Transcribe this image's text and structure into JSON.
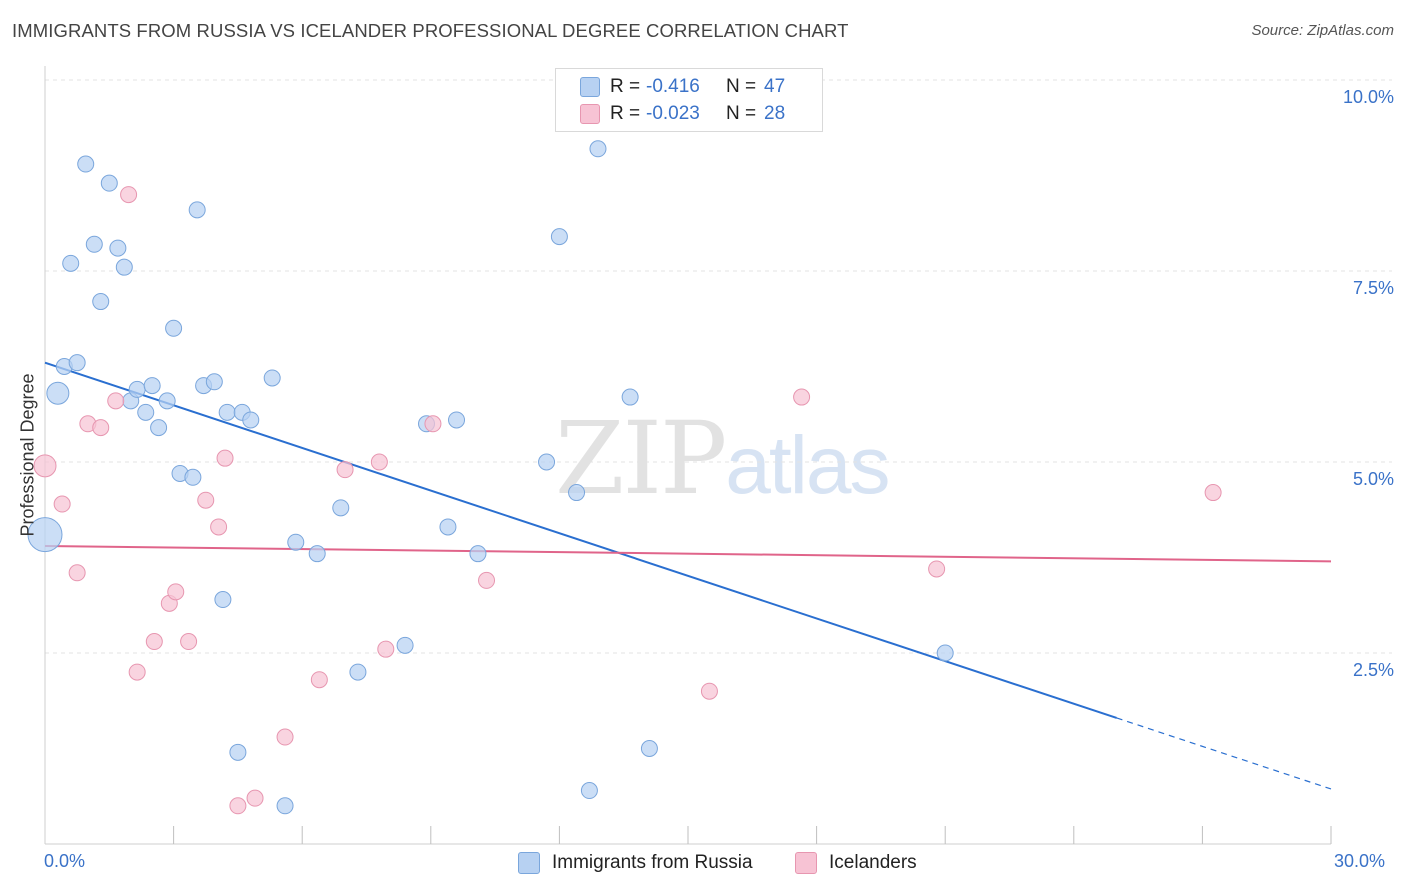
{
  "header": {
    "title": "IMMIGRANTS FROM RUSSIA VS ICELANDER PROFESSIONAL DEGREE CORRELATION CHART",
    "source": "Source: ZipAtlas.com"
  },
  "watermark": {
    "zip": "ZIP",
    "atlas": "atlas"
  },
  "legend": {
    "russia": {
      "r_label": "R =",
      "r_value": "-0.416",
      "n_label": "N =",
      "n_value": "47"
    },
    "iceland": {
      "r_label": "R =",
      "r_value": "-0.023",
      "n_label": "N =",
      "n_value": "28"
    }
  },
  "bottom_legend": {
    "russia": "Immigrants from Russia",
    "iceland": "Icelanders"
  },
  "colors": {
    "russia_fill": "#b7d1f2",
    "russia_stroke": "#7aa6dc",
    "russia_line": "#2a6fd0",
    "iceland_fill": "#f7c3d4",
    "iceland_stroke": "#e796b0",
    "iceland_line": "#e0648a",
    "grid": "#e3e3e3",
    "axis_text": "#3a72c8"
  },
  "chart_data": {
    "type": "scatter",
    "title": "IMMIGRANTS FROM RUSSIA VS ICELANDER PROFESSIONAL DEGREE CORRELATION CHART",
    "xlabel": "",
    "ylabel": "Professional Degree",
    "xlim": [
      0,
      30
    ],
    "ylim": [
      0,
      10.5
    ],
    "x_tick_labels": [
      "0.0%",
      "30.0%"
    ],
    "y_ticks": [
      {
        "value": 2.5,
        "label": "2.5%"
      },
      {
        "value": 5.0,
        "label": "5.0%"
      },
      {
        "value": 7.5,
        "label": "7.5%"
      },
      {
        "value": 10.0,
        "label": "10.0%"
      }
    ],
    "series": [
      {
        "name": "Immigrants from Russia",
        "r": -0.416,
        "n": 47,
        "trend": {
          "x0": 0,
          "y0": 6.3,
          "x1": 25.0,
          "y1": 1.65,
          "dash_to_x": 30,
          "dash_to_y": 0.72
        },
        "points": [
          {
            "x": 0.0,
            "y": 4.05,
            "s": 3
          },
          {
            "x": 0.3,
            "y": 5.9,
            "s": 2
          },
          {
            "x": 0.45,
            "y": 6.25,
            "s": 1
          },
          {
            "x": 0.6,
            "y": 7.6,
            "s": 1
          },
          {
            "x": 0.75,
            "y": 6.3,
            "s": 1
          },
          {
            "x": 0.95,
            "y": 8.9,
            "s": 1
          },
          {
            "x": 1.15,
            "y": 7.85,
            "s": 1
          },
          {
            "x": 1.3,
            "y": 7.1,
            "s": 1
          },
          {
            "x": 1.5,
            "y": 8.65,
            "s": 1
          },
          {
            "x": 1.7,
            "y": 7.8,
            "s": 1
          },
          {
            "x": 1.85,
            "y": 7.55,
            "s": 1
          },
          {
            "x": 2.0,
            "y": 5.8,
            "s": 1
          },
          {
            "x": 2.15,
            "y": 5.95,
            "s": 1
          },
          {
            "x": 2.35,
            "y": 5.65,
            "s": 1
          },
          {
            "x": 2.5,
            "y": 6.0,
            "s": 1
          },
          {
            "x": 2.65,
            "y": 5.45,
            "s": 1
          },
          {
            "x": 2.85,
            "y": 5.8,
            "s": 1
          },
          {
            "x": 3.0,
            "y": 6.75,
            "s": 1
          },
          {
            "x": 3.15,
            "y": 4.85,
            "s": 1
          },
          {
            "x": 3.45,
            "y": 4.8,
            "s": 1
          },
          {
            "x": 3.55,
            "y": 8.3,
            "s": 1
          },
          {
            "x": 3.7,
            "y": 6.0,
            "s": 1
          },
          {
            "x": 3.95,
            "y": 6.05,
            "s": 1
          },
          {
            "x": 4.15,
            "y": 3.2,
            "s": 1
          },
          {
            "x": 4.25,
            "y": 5.65,
            "s": 1
          },
          {
            "x": 4.5,
            "y": 1.2,
            "s": 1
          },
          {
            "x": 4.6,
            "y": 5.65,
            "s": 1
          },
          {
            "x": 4.8,
            "y": 5.55,
            "s": 1
          },
          {
            "x": 5.3,
            "y": 6.1,
            "s": 1
          },
          {
            "x": 5.6,
            "y": 0.5,
            "s": 1
          },
          {
            "x": 5.85,
            "y": 3.95,
            "s": 1
          },
          {
            "x": 6.35,
            "y": 3.8,
            "s": 1
          },
          {
            "x": 6.9,
            "y": 4.4,
            "s": 1
          },
          {
            "x": 7.3,
            "y": 2.25,
            "s": 1
          },
          {
            "x": 8.4,
            "y": 2.6,
            "s": 1
          },
          {
            "x": 8.9,
            "y": 5.5,
            "s": 1
          },
          {
            "x": 9.4,
            "y": 4.15,
            "s": 1
          },
          {
            "x": 9.6,
            "y": 5.55,
            "s": 1
          },
          {
            "x": 10.1,
            "y": 3.8,
            "s": 1
          },
          {
            "x": 11.7,
            "y": 5.0,
            "s": 1
          },
          {
            "x": 12.0,
            "y": 7.95,
            "s": 1
          },
          {
            "x": 12.4,
            "y": 4.6,
            "s": 1
          },
          {
            "x": 12.7,
            "y": 0.7,
            "s": 1
          },
          {
            "x": 12.9,
            "y": 9.1,
            "s": 1
          },
          {
            "x": 13.65,
            "y": 5.85,
            "s": 1
          },
          {
            "x": 14.1,
            "y": 1.25,
            "s": 1
          },
          {
            "x": 21.0,
            "y": 2.5,
            "s": 1
          }
        ]
      },
      {
        "name": "Icelanders",
        "r": -0.023,
        "n": 28,
        "trend": {
          "x0": 0,
          "y0": 3.9,
          "x1": 30,
          "y1": 3.7
        },
        "points": [
          {
            "x": 0.0,
            "y": 4.95,
            "s": 2
          },
          {
            "x": 0.4,
            "y": 4.45,
            "s": 1
          },
          {
            "x": 0.75,
            "y": 3.55,
            "s": 1
          },
          {
            "x": 1.0,
            "y": 5.5,
            "s": 1
          },
          {
            "x": 1.3,
            "y": 5.45,
            "s": 1
          },
          {
            "x": 1.65,
            "y": 5.8,
            "s": 1
          },
          {
            "x": 1.95,
            "y": 8.5,
            "s": 1
          },
          {
            "x": 2.15,
            "y": 2.25,
            "s": 1
          },
          {
            "x": 2.55,
            "y": 2.65,
            "s": 1
          },
          {
            "x": 2.9,
            "y": 3.15,
            "s": 1
          },
          {
            "x": 3.05,
            "y": 3.3,
            "s": 1
          },
          {
            "x": 3.35,
            "y": 2.65,
            "s": 1
          },
          {
            "x": 3.75,
            "y": 4.5,
            "s": 1
          },
          {
            "x": 4.05,
            "y": 4.15,
            "s": 1
          },
          {
            "x": 4.2,
            "y": 5.05,
            "s": 1
          },
          {
            "x": 4.5,
            "y": 0.5,
            "s": 1
          },
          {
            "x": 4.9,
            "y": 0.6,
            "s": 1
          },
          {
            "x": 5.6,
            "y": 1.4,
            "s": 1
          },
          {
            "x": 6.4,
            "y": 2.15,
            "s": 1
          },
          {
            "x": 7.0,
            "y": 4.9,
            "s": 1
          },
          {
            "x": 7.8,
            "y": 5.0,
            "s": 1
          },
          {
            "x": 7.95,
            "y": 2.55,
            "s": 1
          },
          {
            "x": 9.05,
            "y": 5.5,
            "s": 1
          },
          {
            "x": 10.3,
            "y": 3.45,
            "s": 1
          },
          {
            "x": 15.5,
            "y": 2.0,
            "s": 1
          },
          {
            "x": 17.65,
            "y": 5.85,
            "s": 1
          },
          {
            "x": 20.8,
            "y": 3.6,
            "s": 1
          },
          {
            "x": 27.25,
            "y": 4.6,
            "s": 1
          }
        ]
      }
    ]
  }
}
